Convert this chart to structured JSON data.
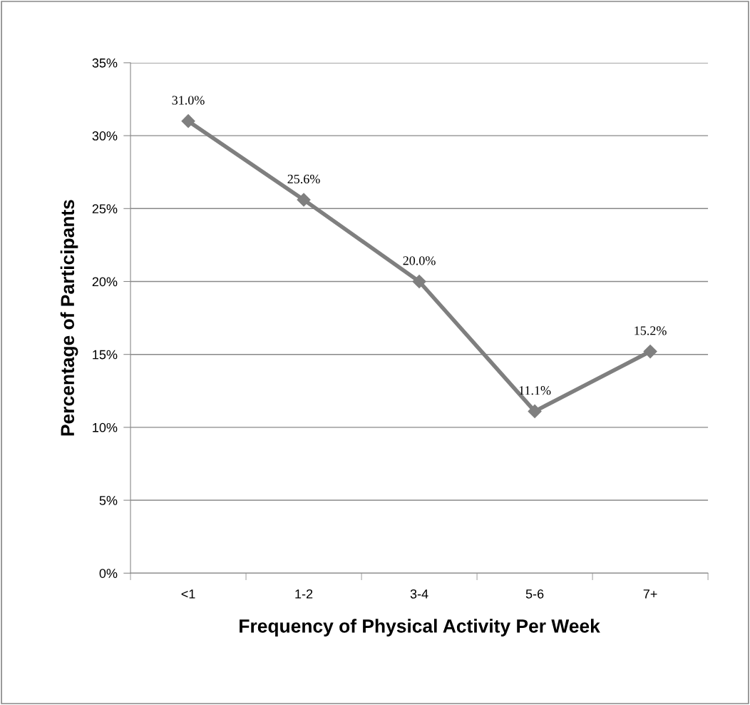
{
  "chart_data": {
    "type": "line",
    "xlabel": "Frequency of Physical Activity Per Week",
    "ylabel": "Percentage of Participants",
    "categories": [
      "<1",
      "1-2",
      "3-4",
      "5-6",
      "7+"
    ],
    "series": [
      {
        "color": "#7f7f7f",
        "values": [
          31.0,
          25.6,
          20.0,
          11.1,
          15.2
        ],
        "value_labels": [
          "31.0%",
          "25.6%",
          "20.0%",
          "11.1%",
          "15.2%"
        ]
      }
    ],
    "ylim": [
      0,
      35
    ],
    "yticks": [
      {
        "value": 0,
        "label": "0%"
      },
      {
        "value": 5,
        "label": "5%"
      },
      {
        "value": 10,
        "label": "10%"
      },
      {
        "value": 15,
        "label": "15%"
      },
      {
        "value": 20,
        "label": "20%"
      },
      {
        "value": 25,
        "label": "25%"
      },
      {
        "value": 30,
        "label": "30%"
      },
      {
        "value": 35,
        "label": "35%"
      }
    ],
    "grid": "y",
    "marker": "diamond",
    "line_style": "solid",
    "legend": false
  }
}
